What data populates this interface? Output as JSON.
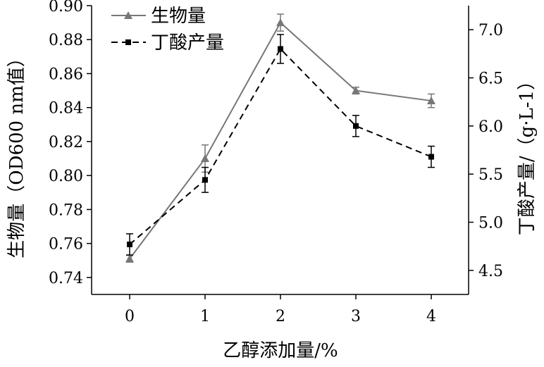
{
  "chart_data": {
    "type": "line",
    "xlabel": "乙醇添加量/%",
    "ylabel_left": "生物量（OD600 nm值）",
    "ylabel_right": "丁酸产量/（g·L-1）",
    "categories": [
      "0",
      "1",
      "2",
      "3",
      "4"
    ],
    "x": [
      0,
      1,
      2,
      3,
      4
    ],
    "left_ylim": [
      0.73,
      0.9
    ],
    "left_ticks": [
      "0.74",
      "0.76",
      "0.78",
      "0.80",
      "0.82",
      "0.84",
      "0.86",
      "0.88",
      "0.90"
    ],
    "right_ylim": [
      4.25,
      7.25
    ],
    "right_ticks": [
      "4.5",
      "5.0",
      "5.5",
      "6.0",
      "6.5",
      "7.0"
    ],
    "series": [
      {
        "name": "生物量",
        "axis": "left",
        "marker": "triangle",
        "line": "solid",
        "color": "#777777",
        "values": [
          0.751,
          0.81,
          0.89,
          0.85,
          0.844
        ],
        "errors": [
          0.002,
          0.008,
          0.005,
          0.002,
          0.004
        ]
      },
      {
        "name": "丁酸产量",
        "axis": "right",
        "marker": "square",
        "line": "dashed",
        "color": "#000000",
        "values": [
          4.77,
          5.44,
          6.8,
          6.0,
          5.68
        ],
        "errors": [
          0.11,
          0.13,
          0.15,
          0.11,
          0.11
        ]
      }
    ],
    "legend_position": "top-left"
  }
}
